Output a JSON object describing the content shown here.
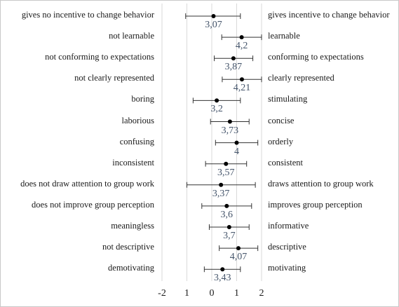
{
  "chart_data": {
    "type": "scatter",
    "subtype": "semantic-differential-with-error-bars",
    "x_ticks": [
      "-2",
      "1",
      "0",
      "1",
      "2"
    ],
    "xlim": [
      -2,
      2
    ],
    "grid": true,
    "marker_color": "#000000",
    "value_color": "#44546a",
    "items": [
      {
        "left": "gives no incentive to change behavior",
        "right": "gives incentive to change behavior",
        "value_label": "3,07",
        "mean": 0.07,
        "low": -1.05,
        "high": 1.15
      },
      {
        "left": "not learnable",
        "right": "learnable",
        "value_label": "4,2",
        "mean": 1.2,
        "low": 0.4,
        "high": 2.0
      },
      {
        "left": "not conforming to expectations",
        "right": "conforming to expectations",
        "value_label": "3,87",
        "mean": 0.87,
        "low": 0.1,
        "high": 1.65
      },
      {
        "left": "not clearly represented",
        "right": "clearly represented",
        "value_label": "4,21",
        "mean": 1.21,
        "low": 0.42,
        "high": 2.0
      },
      {
        "left": "boring",
        "right": "stimulating",
        "value_label": "3,2",
        "mean": 0.2,
        "low": -0.75,
        "high": 1.15
      },
      {
        "left": "laborious",
        "right": "concise",
        "value_label": "3,73",
        "mean": 0.73,
        "low": -0.05,
        "high": 1.5
      },
      {
        "left": "confusing",
        "right": "orderly",
        "value_label": "4",
        "mean": 1.0,
        "low": 0.15,
        "high": 1.85
      },
      {
        "left": "inconsistent",
        "right": "consistent",
        "value_label": "3,57",
        "mean": 0.57,
        "low": -0.25,
        "high": 1.4
      },
      {
        "left": "does not draw attention to group work",
        "right": "draws attention to group work",
        "value_label": "3,37",
        "mean": 0.37,
        "low": -1.0,
        "high": 1.75
      },
      {
        "left": "does not improve group perception",
        "right": "improves group perception",
        "value_label": "3,6",
        "mean": 0.6,
        "low": -0.4,
        "high": 1.6
      },
      {
        "left": "meaningless",
        "right": "informative",
        "value_label": "3,7",
        "mean": 0.7,
        "low": -0.1,
        "high": 1.5
      },
      {
        "left": "not descriptive",
        "right": "descriptive",
        "value_label": "4,07",
        "mean": 1.07,
        "low": 0.3,
        "high": 1.85
      },
      {
        "left": "demotivating",
        "right": "motivating",
        "value_label": "3,43",
        "mean": 0.43,
        "low": -0.3,
        "high": 1.15
      }
    ]
  }
}
